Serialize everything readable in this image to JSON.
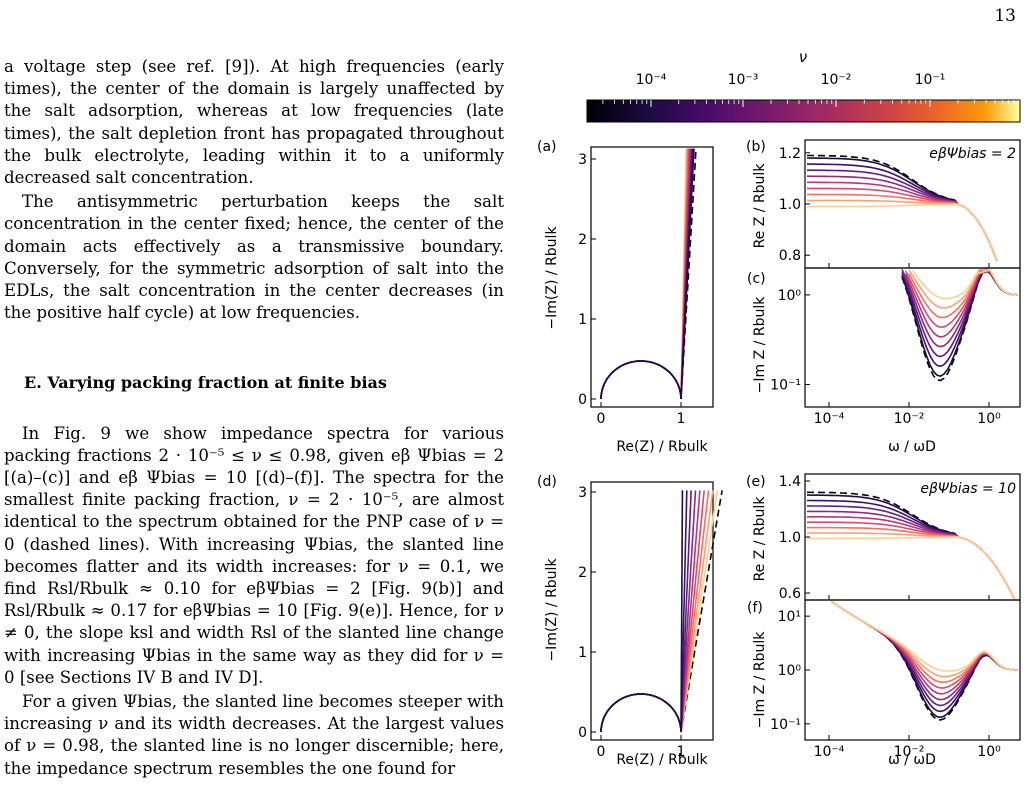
{
  "page_number": "13",
  "text": {
    "p1": "a voltage step (see ref. [9]). At high frequencies (early times), the center of the domain is largely unaffected by the salt adsorption, whereas at low frequencies (late times), the salt depletion front has propagated throughout the bulk electrolyte, leading within it to a uniformly decreased salt concentration.",
    "p2": "The antisymmetric perturbation keeps the salt concentration in the center fixed; hence, the center of the domain acts effectively as a transmissive boundary. Conversely, for the symmetric adsorption of salt into the EDLs, the salt concentration in the center decreases (in the positive half cycle) at low frequencies.",
    "heading": "E.   Varying packing fraction at finite bias",
    "p3": "In Fig. 9 we show impedance spectra for various packing fractions 2 · 10⁻⁵ ≤ ν ≤ 0.98, given eβ Ψbias = 2 [(a)–(c)] and eβ Ψbias = 10 [(d)–(f)]. The spectra for the smallest finite packing fraction, ν = 2 · 10⁻⁵, are almost identical to the spectrum obtained for the PNP case of ν = 0 (dashed lines). With increasing Ψbias, the slanted line becomes flatter and its width increases: for ν = 0.1, we find Rsl/Rbulk ≈ 0.10 for eβΨbias = 2 [Fig. 9(b)] and Rsl/Rbulk ≈ 0.17 for eβΨbias = 10 [Fig. 9(e)]. Hence, for ν ≠ 0, the slope ksl and width Rsl of the slanted line change with increasing Ψbias in the same way as they did for ν = 0 [see Sections IV B and IV D].",
    "p4": "For a given Ψbias, the slanted line becomes steeper with increasing ν and its width decreases. At the largest values of ν = 0.98, the slanted line is no longer discernible; here, the impedance spectrum resembles the one found for"
  },
  "figure": {
    "colorbar_label": "ν",
    "colorbar_ticks": [
      "10⁻⁴",
      "10⁻³",
      "10⁻²",
      "10⁻¹"
    ],
    "panel_labels": [
      "(a)",
      "(b)",
      "(c)",
      "(d)",
      "(e)",
      "(f)"
    ],
    "bias_labels": [
      "eβΨbias = 2",
      "eβΨbias = 10"
    ],
    "nyquist_xlabel": "Re(Z) / Rbulk",
    "nyquist_ylabel": "−Im(Z) / Rbulk",
    "re_ylabel": "Re Z / Rbulk",
    "im_ylabel": "−Im Z / Rbulk",
    "freq_xlabel": "ω / ωD",
    "nyquist_xticks": [
      "0",
      "1"
    ],
    "nyquist_yticks": [
      "0",
      "1",
      "2",
      "3"
    ],
    "b_yticks": [
      "0.8",
      "1.0",
      "1.2"
    ],
    "c_yticks": [
      "10⁻¹",
      "10⁰"
    ],
    "e_yticks": [
      "0.6",
      "1.0",
      "1.4"
    ],
    "f_yticks": [
      "10⁻¹",
      "10⁰",
      "10¹"
    ],
    "freq_xticks": [
      "10⁻⁴",
      "10⁻²",
      "10⁰"
    ]
  },
  "chart_data": {
    "type": "line",
    "series_count": 8,
    "colormap": [
      "#1b0c41",
      "#3b0f70",
      "#641a80",
      "#8c2981",
      "#b73779",
      "#de4968",
      "#f7705c",
      "#fe9f6d",
      "#fecf92"
    ]
  }
}
